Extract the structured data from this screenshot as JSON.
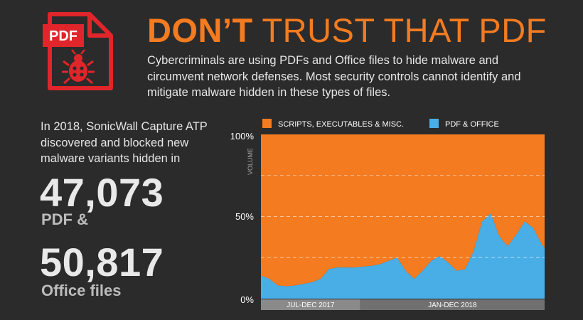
{
  "header": {
    "title_strong": "DON’T",
    "title_rest": "TRUST THAT PDF",
    "subtitle": "Cybercriminals are using PDFs and Office files to hide malware and circumvent network defenses. Most security controls cannot identify and mitigate malware hidden in these types of files.",
    "icon": "pdf-file-bug-icon",
    "icon_label": "PDF"
  },
  "stats": {
    "intro": "In 2018, SonicWall Capture ATP discovered and blocked new malware variants hidden in",
    "pdf_count": "47,073",
    "pdf_label": "PDF &",
    "office_count": "50,817",
    "office_label": "Office files"
  },
  "colors": {
    "accent": "#f47b20",
    "pdf_office": "#4aaee6",
    "background": "#2b2b2b"
  },
  "chart_data": {
    "type": "area",
    "stacked": true,
    "normalized": true,
    "ylabel": "VOLUME",
    "y_ticks": [
      "100%",
      "50%",
      "0%"
    ],
    "ylim": [
      0,
      100
    ],
    "grid": true,
    "legend_position": "top",
    "x": [
      0,
      3,
      6,
      9,
      12,
      15,
      18,
      21,
      24,
      27,
      30,
      33,
      36,
      39,
      42,
      45,
      48,
      51,
      54,
      57,
      60,
      63,
      66,
      69,
      72,
      75,
      78,
      81,
      84,
      87,
      90,
      93,
      96,
      99,
      100
    ],
    "periods": [
      {
        "label": "JUL-DEC 2017",
        "from": 0,
        "to": 35
      },
      {
        "label": "JAN-DEC 2018",
        "from": 35,
        "to": 100
      }
    ],
    "series": [
      {
        "name": "PDF & OFFICE",
        "color": "#4aaee6",
        "values": [
          14,
          12,
          8,
          7.5,
          8,
          9,
          10,
          12,
          18,
          19,
          19,
          19,
          19.5,
          20,
          21,
          23,
          25,
          17,
          12,
          17,
          23,
          26,
          22,
          17,
          18,
          29,
          47,
          52,
          38,
          32,
          39,
          47,
          43,
          33,
          31
        ]
      },
      {
        "name": "SCRIPTS, EXECUTABLES & MISC.",
        "color": "#f47b20",
        "values": [
          86,
          88,
          92,
          92.5,
          92,
          91,
          90,
          88,
          82,
          81,
          81,
          81,
          80.5,
          80,
          79,
          77,
          75,
          83,
          88,
          83,
          77,
          74,
          78,
          83,
          82,
          71,
          53,
          48,
          62,
          68,
          61,
          53,
          57,
          67,
          69
        ]
      }
    ]
  }
}
